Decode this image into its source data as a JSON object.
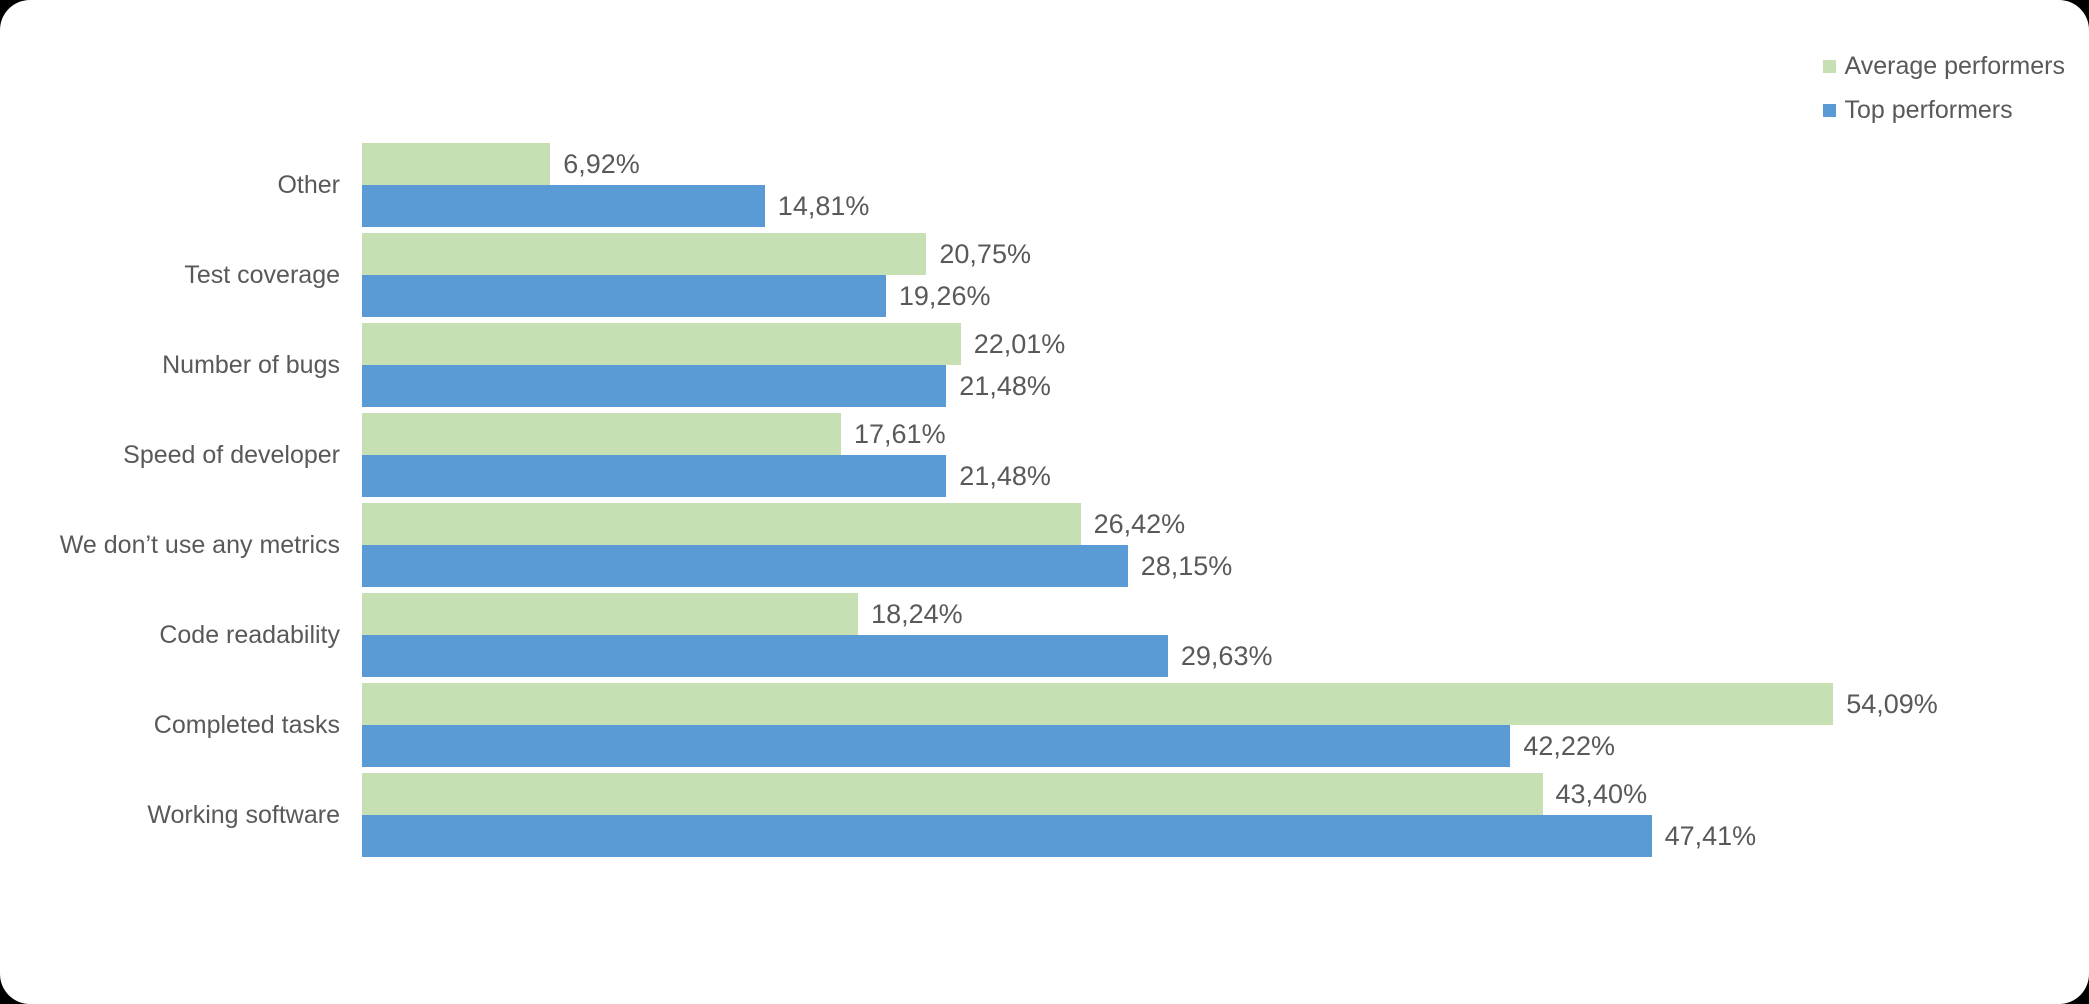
{
  "colors": {
    "page_background": "#000000",
    "canvas_background": "#ffffff",
    "text": "#595959",
    "series_average": "#c6e0b4",
    "series_top": "#5b9bd5"
  },
  "legend": {
    "position": "top-right",
    "items": [
      {
        "label": "Average performers",
        "color": "#c6e0b4"
      },
      {
        "label": "Top performers",
        "color": "#5b9bd5"
      }
    ]
  },
  "chart_data": {
    "type": "bar",
    "orientation": "horizontal",
    "title": "",
    "xlabel": "",
    "ylabel": "",
    "grid": false,
    "axis_visible": false,
    "xlim": [
      0,
      60
    ],
    "legend_position": "top-right",
    "categories": [
      "Other",
      "Test coverage",
      "Number of bugs",
      "Speed of developer",
      "We don’t use any metrics",
      "Code readability",
      "Completed tasks",
      "Working software"
    ],
    "series": [
      {
        "name": "Average performers",
        "color": "#c6e0b4",
        "values": [
          6.92,
          20.75,
          22.01,
          17.61,
          26.42,
          18.24,
          54.09,
          43.4
        ],
        "labels": [
          "6,92%",
          "20,75%",
          "22,01%",
          "17,61%",
          "26,42%",
          "18,24%",
          "54,09%",
          "43,40%"
        ]
      },
      {
        "name": "Top performers",
        "color": "#5b9bd5",
        "values": [
          14.81,
          19.26,
          21.48,
          21.48,
          28.15,
          29.63,
          42.22,
          47.41
        ],
        "labels": [
          "14,81%",
          "19,26%",
          "21,48%",
          "21,48%",
          "28,15%",
          "29,63%",
          "42,22%",
          "47,41%"
        ]
      }
    ]
  }
}
